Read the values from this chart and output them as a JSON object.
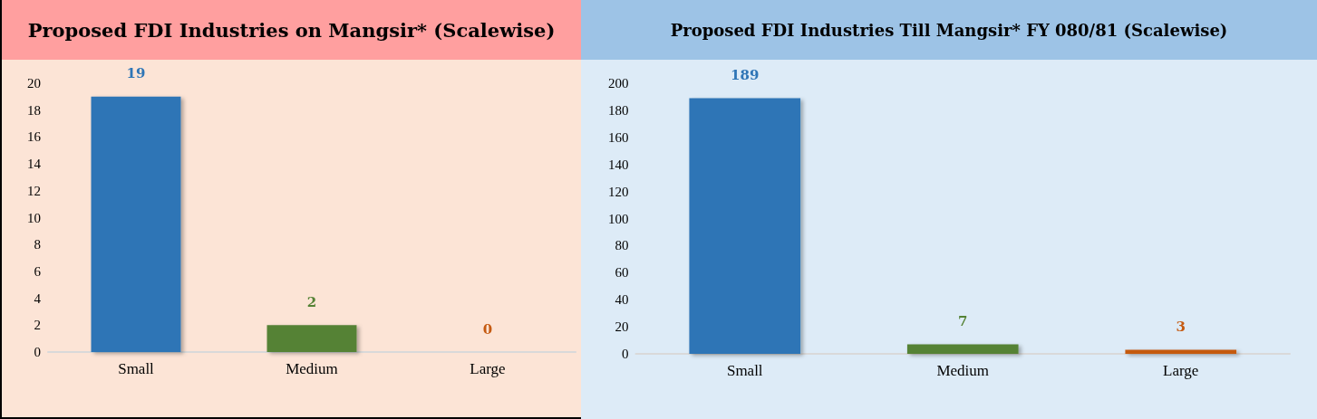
{
  "chart_data": [
    {
      "type": "bar",
      "title": "Proposed FDI Industries on Mangsir* (Scalewise)",
      "categories": [
        "Small",
        "Medium",
        "Large"
      ],
      "values": [
        19,
        2,
        0
      ],
      "colors": [
        "#2e75b6",
        "#548235",
        "#c55a11"
      ],
      "ylim": [
        0,
        20
      ],
      "yticks": [
        0,
        2,
        4,
        6,
        8,
        10,
        12,
        14,
        16,
        18,
        20
      ],
      "grid": false,
      "data_labels": true
    },
    {
      "type": "bar",
      "title": "Proposed FDI Industries Till Mangsir* FY 080/81 (Scalewise)",
      "categories": [
        "Small",
        "Medium",
        "Large"
      ],
      "values": [
        189,
        7,
        3
      ],
      "colors": [
        "#2e75b6",
        "#548235",
        "#c55a11"
      ],
      "ylim": [
        0,
        200
      ],
      "yticks": [
        0,
        20,
        40,
        60,
        80,
        100,
        120,
        140,
        160,
        180,
        200
      ],
      "grid": false,
      "data_labels": true
    }
  ]
}
